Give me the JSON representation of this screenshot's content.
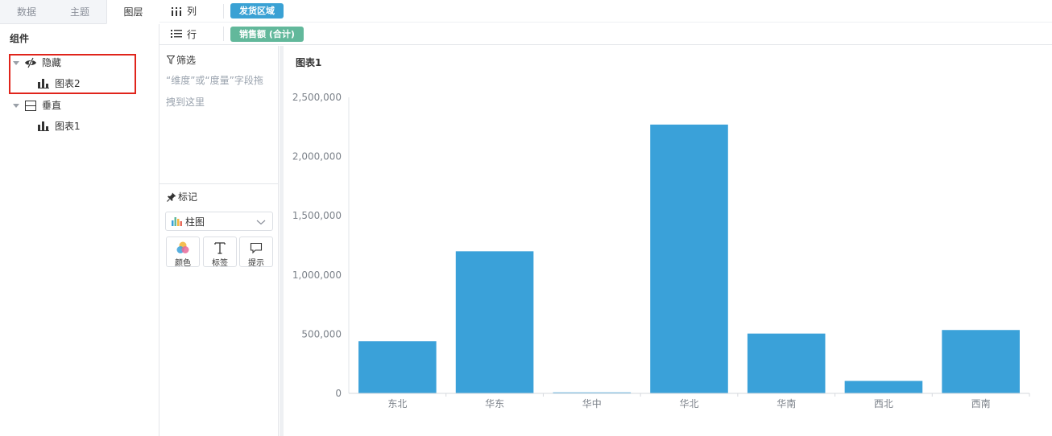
{
  "left_panel": {
    "tabs": [
      {
        "label": "数据"
      },
      {
        "label": "主题"
      },
      {
        "label": "图层"
      }
    ],
    "section_title": "组件",
    "tree": {
      "hidden_group": {
        "label": "隐藏",
        "child": "图表2"
      },
      "vertical_group": {
        "label": "垂直",
        "child": "图表1"
      }
    }
  },
  "shelf": {
    "column": {
      "label": "列",
      "pill": "发货区域"
    },
    "row": {
      "label": "行",
      "pill": "销售额 (合计)"
    }
  },
  "filter": {
    "title": "筛选",
    "hint": "“维度”或“度量”字段拖拽到这里"
  },
  "marks": {
    "title": "标记",
    "type": "柱图",
    "buttons": [
      {
        "label": "颜色"
      },
      {
        "label": "标签"
      },
      {
        "label": "提示"
      }
    ]
  },
  "chart_title": "图表1",
  "colors": {
    "bar": "#3aa1d9",
    "dimension_pill": "#3aa1d4",
    "measure_pill": "#62b89b",
    "highlight": "#e0241b"
  },
  "chart_data": {
    "type": "bar",
    "title": "图表1",
    "categories": [
      "东北",
      "华东",
      "华中",
      "华北",
      "华南",
      "西北",
      "西南"
    ],
    "values": [
      440000,
      1200000,
      8000,
      2270000,
      505000,
      105000,
      535000
    ],
    "ylim": [
      0,
      2500000
    ],
    "yticks": [
      0,
      500000,
      1000000,
      1500000,
      2000000,
      2500000
    ],
    "ytick_labels": [
      "0",
      "500,000",
      "1,000,000",
      "1,500,000",
      "2,000,000",
      "2,500,000"
    ],
    "xlabel": "",
    "ylabel": "",
    "grid": false,
    "legend": "none"
  }
}
